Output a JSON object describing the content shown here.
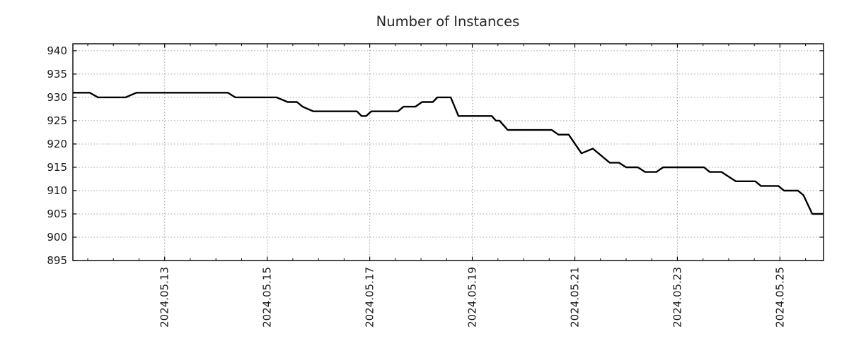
{
  "figure": {
    "background": "#ffffff",
    "axis_color": "#000000",
    "title_color": "#262626",
    "tick_label_color": "#1a1a1a"
  },
  "chart_data": {
    "type": "line",
    "title": "Number of Instances",
    "legend": "none",
    "grid": {
      "show": true,
      "color": "#a3a3a3",
      "style": "dotted"
    },
    "x_axis": {
      "tick_labels": [
        "2024.05.13",
        "2024.05.15",
        "2024.05.17",
        "2024.05.19",
        "2024.05.21",
        "2024.05.23",
        "2024.05.25"
      ],
      "tick_days": [
        13,
        15,
        17,
        19,
        21,
        23,
        25
      ],
      "minor_tick_step_days": 0.5,
      "xlim_days": [
        11.21,
        25.85
      ],
      "label_rotation_deg": 90
    },
    "y_axis": {
      "tick_labels": [
        "895",
        "900",
        "905",
        "910",
        "915",
        "920",
        "925",
        "930",
        "935",
        "940"
      ],
      "tick_values": [
        895,
        900,
        905,
        910,
        915,
        920,
        925,
        930,
        935,
        940
      ],
      "ylim": [
        895,
        941.5
      ]
    },
    "series": [
      {
        "name": "Number of Instances",
        "color": "#000000",
        "line_width": 2.4,
        "points": [
          [
            11.21,
            931
          ],
          [
            11.54,
            931
          ],
          [
            11.7,
            930
          ],
          [
            12.24,
            930
          ],
          [
            12.45,
            931
          ],
          [
            14.23,
            931
          ],
          [
            14.38,
            930
          ],
          [
            15.18,
            930
          ],
          [
            15.4,
            929
          ],
          [
            15.58,
            929
          ],
          [
            15.69,
            928
          ],
          [
            15.9,
            927
          ],
          [
            16.75,
            927
          ],
          [
            16.84,
            926
          ],
          [
            16.93,
            926
          ],
          [
            17.03,
            927
          ],
          [
            17.55,
            927
          ],
          [
            17.66,
            928
          ],
          [
            17.89,
            928
          ],
          [
            18.02,
            929
          ],
          [
            18.23,
            929
          ],
          [
            18.32,
            930
          ],
          [
            18.58,
            930
          ],
          [
            18.73,
            926
          ],
          [
            19.38,
            926
          ],
          [
            19.46,
            925
          ],
          [
            19.53,
            925
          ],
          [
            19.69,
            923
          ],
          [
            20.55,
            923
          ],
          [
            20.68,
            922
          ],
          [
            20.88,
            922
          ],
          [
            21.13,
            918
          ],
          [
            21.35,
            919
          ],
          [
            21.68,
            916
          ],
          [
            21.86,
            916
          ],
          [
            22.0,
            915
          ],
          [
            22.23,
            915
          ],
          [
            22.37,
            914
          ],
          [
            22.59,
            914
          ],
          [
            22.72,
            915
          ],
          [
            23.52,
            915
          ],
          [
            23.63,
            914
          ],
          [
            23.86,
            914
          ],
          [
            24.0,
            913
          ],
          [
            24.14,
            912
          ],
          [
            24.52,
            912
          ],
          [
            24.63,
            911
          ],
          [
            24.97,
            911
          ],
          [
            25.08,
            910
          ],
          [
            25.35,
            910
          ],
          [
            25.46,
            909
          ],
          [
            25.63,
            905
          ],
          [
            25.84,
            905
          ]
        ]
      }
    ]
  }
}
